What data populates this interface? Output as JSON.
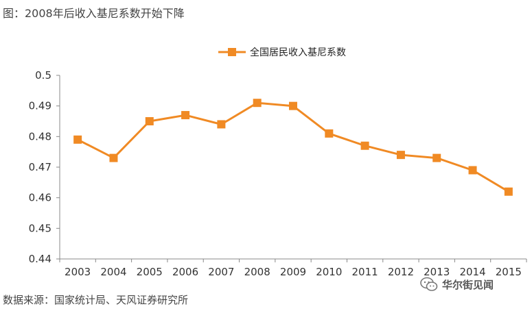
{
  "figure": {
    "title": "图：2008年后收入基尼系数开始下降",
    "source": "数据来源：国家统计局、天风证券研究所",
    "watermark": "华尔街见闻"
  },
  "chart_data": {
    "type": "line",
    "title": "",
    "xlabel": "",
    "ylabel": "",
    "x": [
      "2003",
      "2004",
      "2005",
      "2006",
      "2007",
      "2008",
      "2009",
      "2010",
      "2011",
      "2012",
      "2013",
      "2014",
      "2015"
    ],
    "series": [
      {
        "name": "全国居民收入基尼系数",
        "values": [
          0.479,
          0.473,
          0.485,
          0.487,
          0.484,
          0.491,
          0.49,
          0.481,
          0.477,
          0.474,
          0.473,
          0.469,
          0.462
        ],
        "color": "#F08A24",
        "marker": "square"
      }
    ],
    "ylim": [
      0.44,
      0.5
    ],
    "yticks": [
      "0.44",
      "0.45",
      "0.46",
      "0.47",
      "0.48",
      "0.49",
      "0.5"
    ],
    "grid": false,
    "legend": "top-center"
  }
}
